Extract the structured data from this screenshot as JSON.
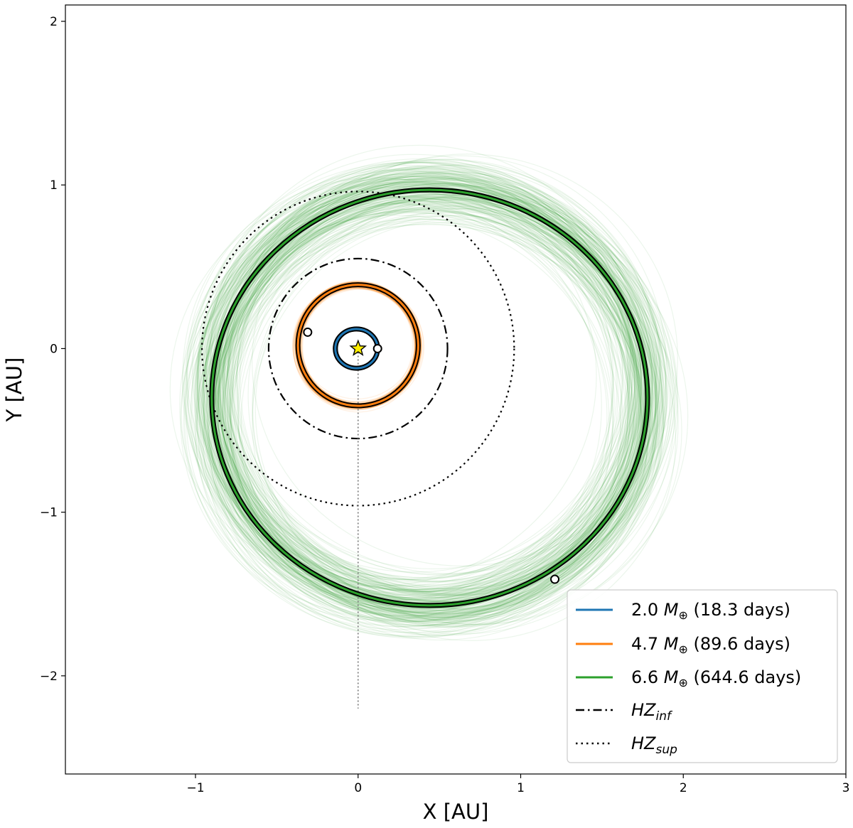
{
  "chart_data": {
    "type": "orbit",
    "xlabel": "X [AU]",
    "ylabel": "Y [AU]",
    "xlim": [
      -1.8,
      3.0
    ],
    "ylim": [
      -2.6,
      2.1
    ],
    "x_ticks": [
      -1,
      0,
      1,
      2,
      3
    ],
    "y_ticks": [
      -2,
      -1,
      0,
      1,
      2
    ],
    "x_tick_labels": [
      "−1",
      "0",
      "1",
      "2",
      "3"
    ],
    "y_tick_labels": [
      "−2",
      "−1",
      "0",
      "1",
      "2"
    ],
    "grid": false,
    "legend_placement": "lower-right",
    "star": {
      "x": 0,
      "y": 0,
      "color": "#ffee00"
    },
    "planets": [
      {
        "label": "2.0",
        "unit": "M",
        "subscript": "⊕",
        "period": "(18.3 days)",
        "color": "#1f77b4",
        "ellipse": {
          "cx": -0.01,
          "cy": 0.0,
          "rx": 0.13,
          "ry": 0.12
        },
        "marker": {
          "x": 0.12,
          "y": 0.0
        }
      },
      {
        "label": "4.7",
        "unit": "M",
        "subscript": "⊕",
        "period": "(89.6 days)",
        "color": "#ff7f0e",
        "ellipse": {
          "cx": 0.0,
          "cy": 0.02,
          "rx": 0.37,
          "ry": 0.37
        },
        "marker": {
          "x": -0.31,
          "y": 0.1
        }
      },
      {
        "label": "6.6",
        "unit": "M",
        "subscript": "⊕",
        "period": "(644.6 days)",
        "color": "#2ca02c",
        "ellipse": {
          "cx": 0.44,
          "cy": -0.3,
          "rx": 1.34,
          "ry": 1.27
        },
        "marker": {
          "x": 1.21,
          "y": -1.41
        }
      }
    ],
    "habitable_zone": [
      {
        "label": "HZ",
        "subscript": "inf",
        "radius": 0.55,
        "style": "dashdot"
      },
      {
        "label": "HZ",
        "subscript": "sup",
        "radius": 0.96,
        "style": "dotted"
      }
    ],
    "periastron_line": {
      "x": 0,
      "y_from": 0,
      "y_to": -2.2
    }
  }
}
